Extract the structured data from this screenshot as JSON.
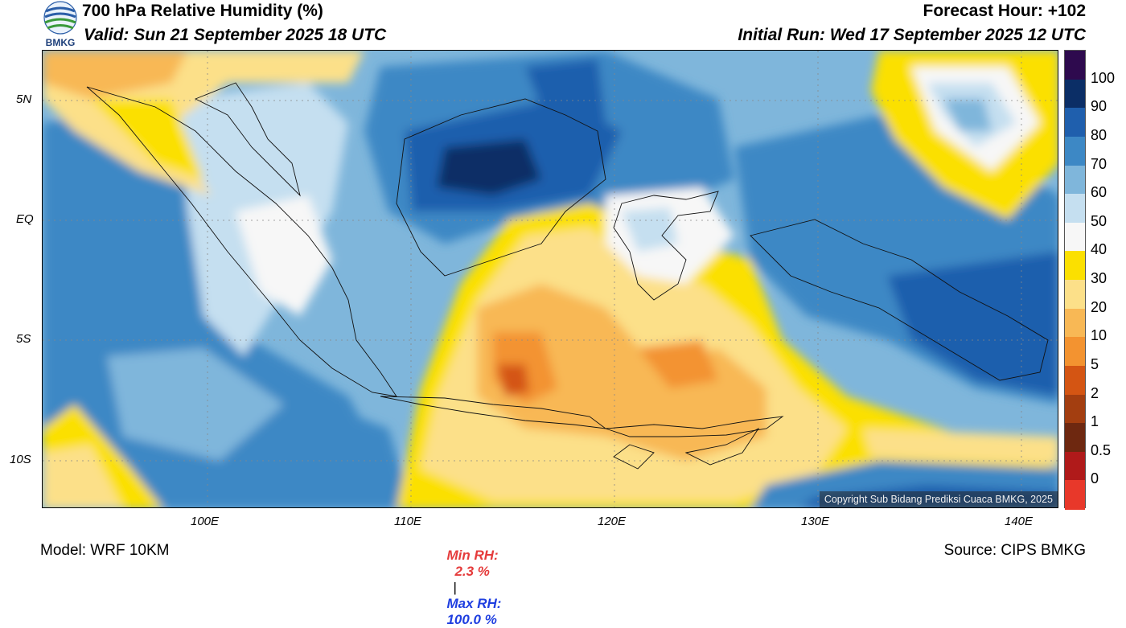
{
  "header": {
    "title": "700 hPa Relative Humidity (%)",
    "valid": "Valid: Sun 21 September 2025 18 UTC",
    "forecast_hour": "Forecast Hour: +102",
    "initial_run": "Initial Run: Wed 17 September 2025 12 UTC",
    "logo_text": "BMKG"
  },
  "map": {
    "lat_labels": [
      "5N",
      "EQ",
      "5S",
      "10S"
    ],
    "lon_labels": [
      "100E",
      "110E",
      "120E",
      "130E",
      "140E"
    ],
    "copyright": "Copyright Sub Bidang Prediksi Cuaca BMKG, 2025"
  },
  "colorbar": {
    "levels": [
      "100",
      "90",
      "80",
      "70",
      "60",
      "50",
      "40",
      "30",
      "20",
      "10",
      "5",
      "2",
      "1",
      "0.5",
      "0"
    ],
    "colors": [
      "#2e0a4e",
      "#0b2e66",
      "#1f5fad",
      "#3d88c5",
      "#7fb6db",
      "#c5dff0",
      "#f7f7f7",
      "#fbe000",
      "#fce089",
      "#f8b855",
      "#f39330",
      "#d45513",
      "#a33e10",
      "#6e2810",
      "#b01a1a",
      "#e8382a"
    ]
  },
  "stats": {
    "min_label": "Min RH:",
    "min_value": "2.3 %",
    "separator": "|",
    "max_label": "Max RH:",
    "max_value": "100.0 %",
    "min_color": "#e53b3b",
    "max_color": "#1f3fe0"
  },
  "footer": {
    "model": "Model: WRF 10KM",
    "source": "Source: CIPS BMKG"
  }
}
